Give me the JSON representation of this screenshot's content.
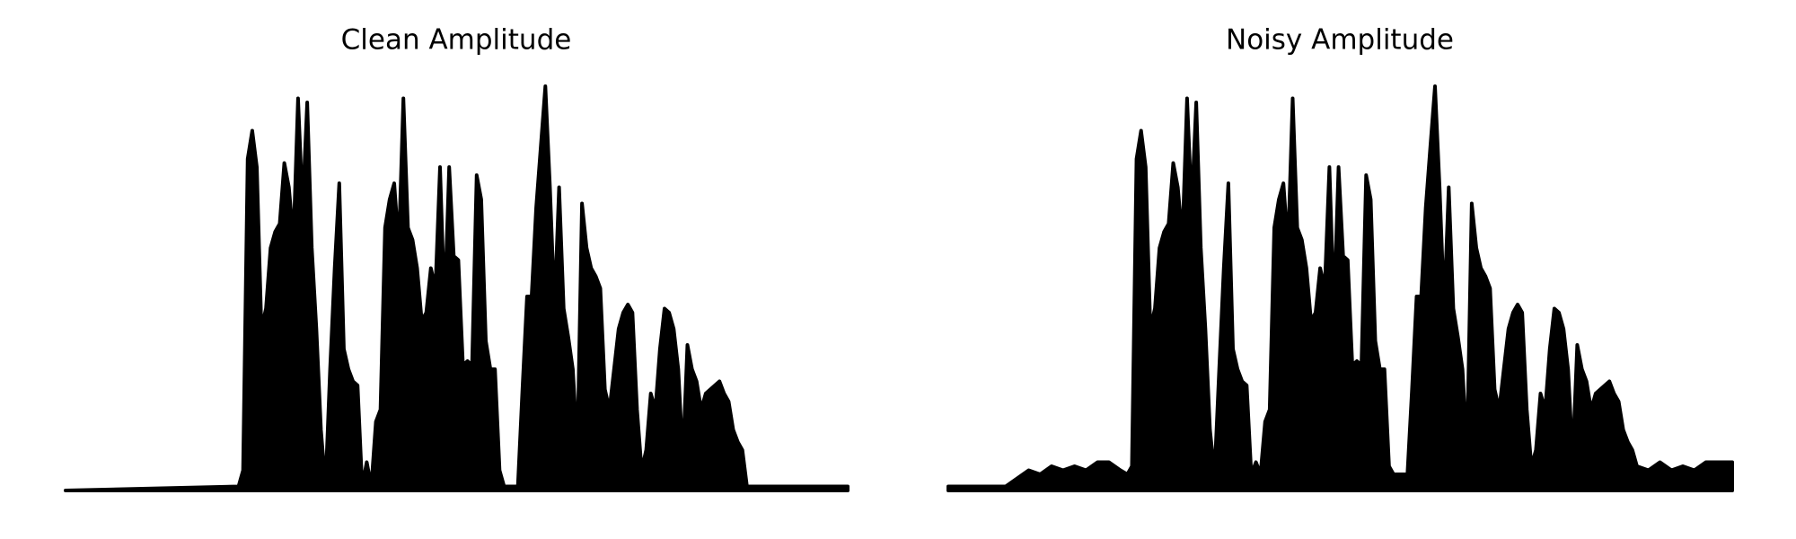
{
  "chart_data": [
    {
      "type": "area",
      "title": "Clean Amplitude",
      "color": "#000000",
      "xlim": [
        0,
        683
      ],
      "ylim": [
        0,
        1
      ],
      "x": [
        0,
        151,
        155,
        159,
        163,
        167,
        171,
        175,
        179,
        183,
        187,
        191,
        195,
        199,
        203,
        207,
        211,
        215,
        219,
        223,
        227,
        231,
        235,
        239,
        243,
        247,
        251,
        255,
        259,
        263,
        267,
        271,
        275,
        279,
        283,
        287,
        291,
        295,
        299,
        303,
        307,
        311,
        315,
        319,
        323,
        327,
        331,
        335,
        339,
        343,
        347,
        351,
        355,
        359,
        363,
        367,
        371,
        375,
        379,
        383,
        387,
        391,
        395,
        399,
        403,
        407,
        411,
        415,
        419,
        423,
        427,
        431,
        435,
        439,
        443,
        447,
        451,
        455,
        459,
        463,
        467,
        471,
        475,
        479,
        483,
        487,
        491,
        495,
        499,
        503,
        507,
        511,
        515,
        519,
        523,
        527,
        531,
        535,
        539,
        543,
        547,
        551,
        555,
        559,
        563,
        567,
        571,
        575,
        579,
        583,
        587,
        591,
        595,
        683
      ],
      "values": [
        0,
        0.01,
        0.05,
        0.82,
        0.89,
        0.8,
        0.4,
        0.45,
        0.6,
        0.64,
        0.66,
        0.81,
        0.75,
        0.62,
        0.97,
        0.7,
        0.96,
        0.6,
        0.4,
        0.15,
        0.01,
        0.3,
        0.55,
        0.76,
        0.35,
        0.3,
        0.27,
        0.26,
        0.01,
        0.07,
        0.01,
        0.17,
        0.2,
        0.65,
        0.72,
        0.76,
        0.6,
        0.97,
        0.65,
        0.62,
        0.55,
        0.42,
        0.44,
        0.55,
        0.5,
        0.8,
        0.45,
        0.8,
        0.58,
        0.57,
        0.31,
        0.32,
        0.31,
        0.78,
        0.72,
        0.37,
        0.3,
        0.3,
        0.05,
        0.01,
        0.01,
        0.01,
        0.01,
        0.25,
        0.48,
        0.48,
        0.7,
        0.85,
        1,
        0.75,
        0.45,
        0.75,
        0.45,
        0.38,
        0.3,
        0.1,
        0.71,
        0.6,
        0.55,
        0.53,
        0.5,
        0.25,
        0.2,
        0.3,
        0.4,
        0.44,
        0.46,
        0.44,
        0.2,
        0.05,
        0.1,
        0.24,
        0.2,
        0.35,
        0.45,
        0.44,
        0.4,
        0.3,
        0.08,
        0.36,
        0.3,
        0.27,
        0.2,
        0.24,
        0.25,
        0.26,
        0.27,
        0.24,
        0.22,
        0.15,
        0.12,
        0.1,
        0.01,
        0.01
      ]
    },
    {
      "type": "area",
      "title": "Noisy Amplitude",
      "color": "#000000",
      "xlim": [
        0,
        683
      ],
      "ylim": [
        0,
        1
      ],
      "x": [
        0,
        10,
        20,
        30,
        40,
        50,
        60,
        70,
        80,
        90,
        100,
        110,
        120,
        130,
        140,
        150,
        156,
        160,
        164,
        168,
        172,
        176,
        180,
        184,
        188,
        192,
        196,
        200,
        204,
        208,
        212,
        216,
        220,
        224,
        228,
        232,
        236,
        240,
        244,
        248,
        252,
        256,
        260,
        264,
        268,
        272,
        276,
        280,
        284,
        288,
        292,
        296,
        300,
        304,
        308,
        312,
        316,
        320,
        324,
        328,
        332,
        336,
        340,
        344,
        348,
        352,
        356,
        360,
        364,
        368,
        372,
        376,
        380,
        384,
        388,
        392,
        396,
        400,
        404,
        408,
        412,
        416,
        420,
        424,
        428,
        432,
        436,
        440,
        444,
        448,
        452,
        456,
        460,
        464,
        468,
        472,
        476,
        480,
        484,
        488,
        492,
        496,
        500,
        504,
        508,
        512,
        516,
        520,
        524,
        528,
        532,
        536,
        540,
        544,
        548,
        552,
        556,
        560,
        564,
        568,
        572,
        576,
        580,
        584,
        588,
        592,
        596,
        600,
        610,
        620,
        630,
        640,
        650,
        660,
        670,
        683
      ],
      "values": [
        0.01,
        0.01,
        0.01,
        0.01,
        0.01,
        0.01,
        0.03,
        0.05,
        0.04,
        0.06,
        0.05,
        0.06,
        0.05,
        0.07,
        0.07,
        0.05,
        0.04,
        0.06,
        0.82,
        0.89,
        0.8,
        0.4,
        0.45,
        0.6,
        0.64,
        0.66,
        0.81,
        0.75,
        0.62,
        0.97,
        0.7,
        0.96,
        0.6,
        0.4,
        0.15,
        0.04,
        0.3,
        0.55,
        0.76,
        0.35,
        0.3,
        0.27,
        0.26,
        0.04,
        0.07,
        0.04,
        0.17,
        0.2,
        0.65,
        0.72,
        0.76,
        0.6,
        0.97,
        0.65,
        0.62,
        0.55,
        0.42,
        0.44,
        0.55,
        0.5,
        0.8,
        0.45,
        0.8,
        0.58,
        0.57,
        0.31,
        0.32,
        0.31,
        0.78,
        0.72,
        0.37,
        0.3,
        0.3,
        0.06,
        0.04,
        0.04,
        0.04,
        0.04,
        0.25,
        0.48,
        0.48,
        0.7,
        0.85,
        1,
        0.75,
        0.45,
        0.75,
        0.45,
        0.38,
        0.3,
        0.1,
        0.71,
        0.6,
        0.55,
        0.53,
        0.5,
        0.25,
        0.2,
        0.3,
        0.4,
        0.44,
        0.46,
        0.44,
        0.2,
        0.06,
        0.1,
        0.24,
        0.2,
        0.35,
        0.45,
        0.44,
        0.4,
        0.3,
        0.08,
        0.36,
        0.3,
        0.27,
        0.2,
        0.24,
        0.25,
        0.26,
        0.27,
        0.24,
        0.22,
        0.15,
        0.12,
        0.1,
        0.06,
        0.05,
        0.07,
        0.05,
        0.06,
        0.05,
        0.07,
        0.07,
        0.07
      ]
    }
  ]
}
